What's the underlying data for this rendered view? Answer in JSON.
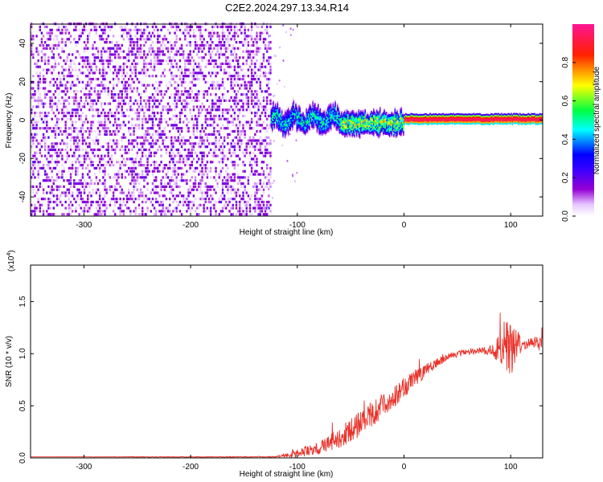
{
  "title": "C2E2.2024.297.13.34.R14",
  "chart_data": [
    {
      "type": "heatmap",
      "xlabel": "Height of straight line (km)",
      "ylabel": "Frequency (Hz)",
      "xlim": [
        -350,
        130
      ],
      "ylim": [
        -50,
        50
      ],
      "x_ticks": [
        "-300",
        "-200",
        "-100",
        "0",
        "100"
      ],
      "y_ticks": [
        "-40",
        "-20",
        "0",
        "20",
        "40"
      ],
      "colorbar": {
        "label": "Normalized spectral amplitude",
        "range": [
          0.0,
          1.0
        ],
        "ticks": [
          "0.0",
          "0.2",
          "0.4",
          "0.6",
          "0.8"
        ],
        "colors": [
          "#ffffff",
          "#9400d3",
          "#0000ff",
          "#00ffff",
          "#00ff00",
          "#ffff00",
          "#ff0000",
          "#ff1493"
        ]
      },
      "features": [
        {
          "description_x_range": [
            -350,
            -125
          ],
          "kind": "noise",
          "amplitude": 0.15
        },
        {
          "description_x_range": [
            -125,
            -60
          ],
          "kind": "signal",
          "freq_hz": 0,
          "amplitude": 0.45
        },
        {
          "description_x_range": [
            -60,
            0
          ],
          "kind": "signal",
          "freq_hz": -1,
          "amplitude": 0.6
        },
        {
          "description_x_range": [
            0,
            130
          ],
          "kind": "signal",
          "freq_hz": 0,
          "amplitude": 0.95
        }
      ]
    },
    {
      "type": "line",
      "xlabel": "Height of straight line (km)",
      "ylabel": "SNR (10 * v/v)",
      "exponent_label": "(x10",
      "exponent_power": "4",
      "exponent_close": ")",
      "xlim": [
        -350,
        130
      ],
      "ylim": [
        0,
        1.85
      ],
      "x_ticks": [
        "-300",
        "-200",
        "-100",
        "0",
        "100"
      ],
      "y_ticks": [
        "0.0",
        "0.5",
        "1.0",
        "1.5"
      ],
      "series": [
        {
          "color": "#e8332a",
          "x": [
            -350,
            -120,
            -100,
            -80,
            -60,
            -40,
            -20,
            0,
            20,
            40,
            60,
            80,
            90,
            100,
            110,
            120,
            130
          ],
          "y": [
            0.01,
            0.01,
            0.04,
            0.09,
            0.2,
            0.33,
            0.5,
            0.67,
            0.84,
            0.97,
            1.02,
            1.03,
            1.05,
            1.05,
            1.08,
            1.1,
            1.1
          ],
          "noise": [
            0,
            0.005,
            0.04,
            0.06,
            0.1,
            0.12,
            0.12,
            0.1,
            0.06,
            0.03,
            0.03,
            0.04,
            0.15,
            0.35,
            0.06,
            0.05,
            0.08
          ]
        }
      ]
    }
  ]
}
